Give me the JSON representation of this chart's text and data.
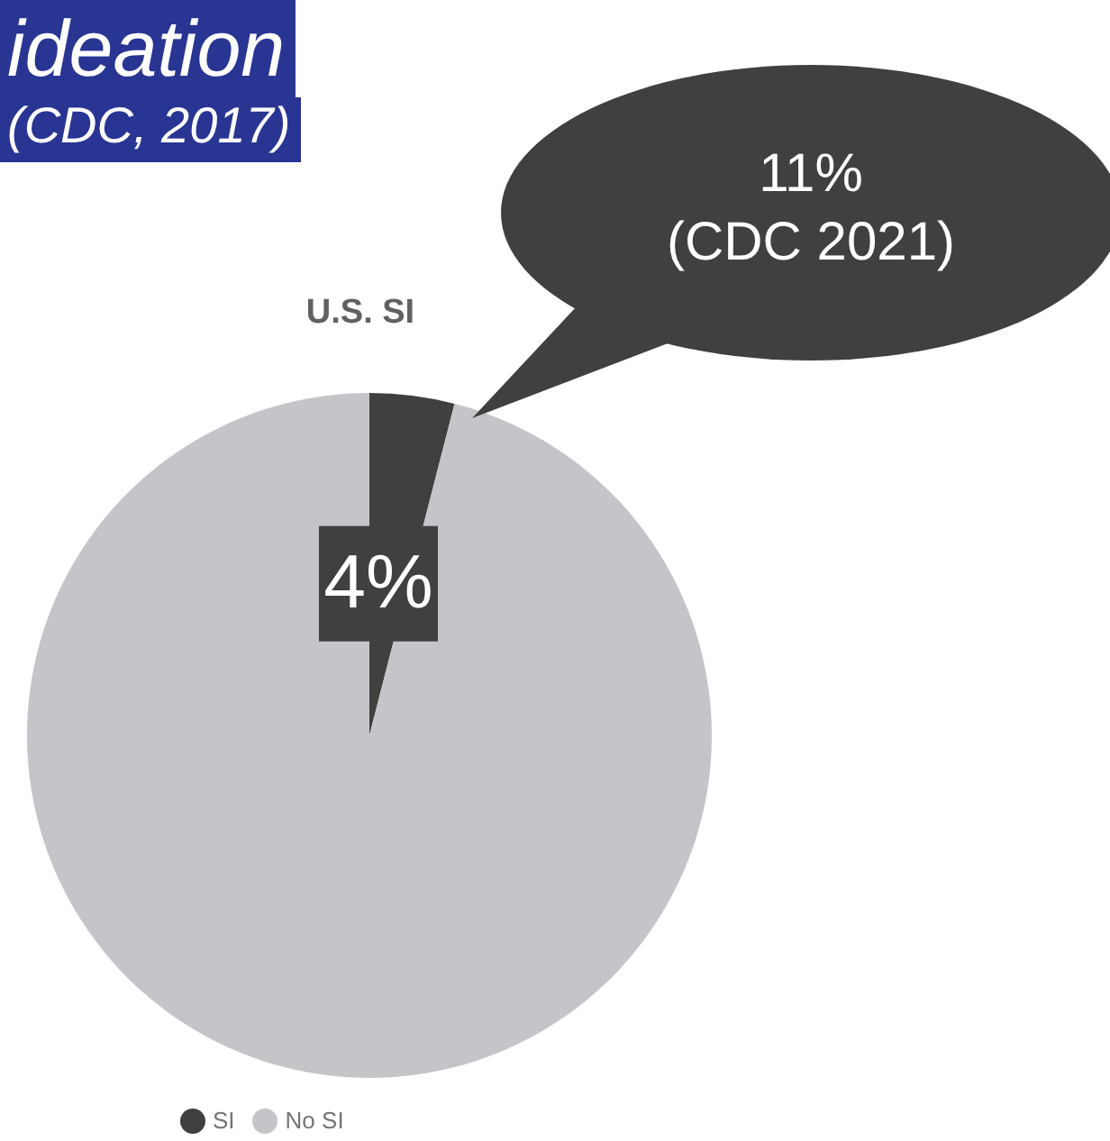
{
  "chart_data": {
    "type": "pie",
    "title": "U.S. SI",
    "categories": [
      "SI",
      "No SI"
    ],
    "values": [
      4,
      96
    ],
    "colors": [
      "#404040",
      "#c4c5c9"
    ],
    "value_labels": [
      "4%",
      null
    ],
    "legend": "bottom",
    "annotations": [
      "ideation",
      "(CDC, 2017)",
      "11%",
      "(CDC 2021)"
    ]
  }
}
